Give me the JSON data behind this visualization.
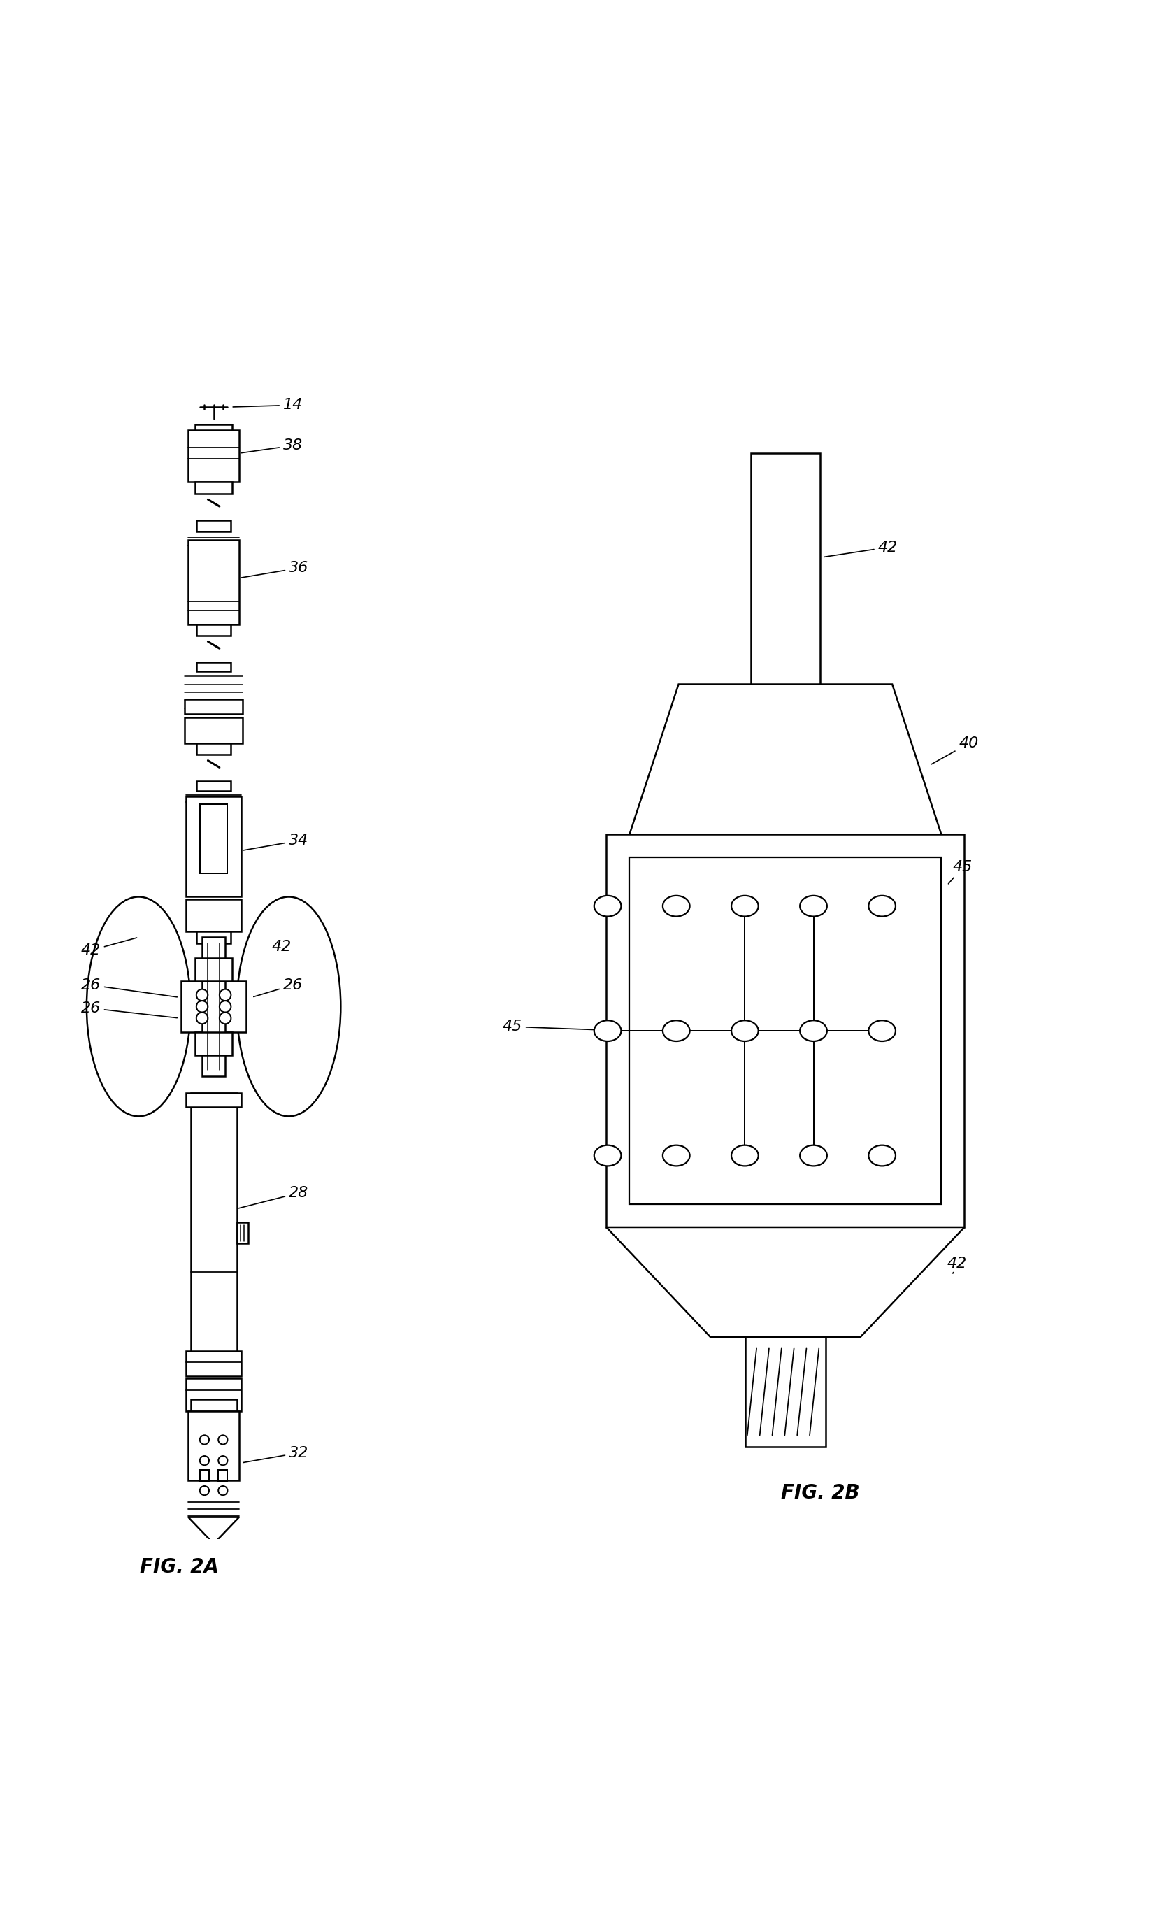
{
  "bg_color": "#ffffff",
  "line_color": "#000000",
  "line_width": 1.8,
  "fig_label_a": "FIG. 2A",
  "fig_label_b": "FIG. 2B"
}
